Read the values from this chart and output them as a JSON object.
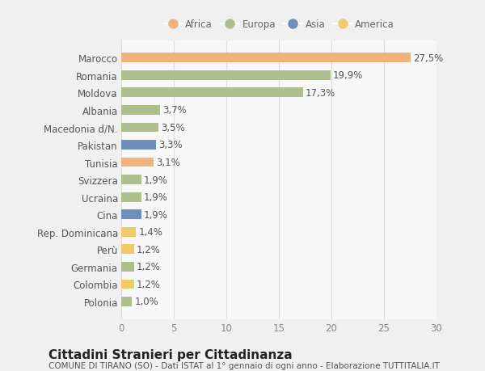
{
  "countries": [
    "Marocco",
    "Romania",
    "Moldova",
    "Albania",
    "Macedonia d/N.",
    "Pakistan",
    "Tunisia",
    "Svizzera",
    "Ucraina",
    "Cina",
    "Rep. Dominicana",
    "Perù",
    "Germania",
    "Colombia",
    "Polonia"
  ],
  "values": [
    27.5,
    19.9,
    17.3,
    3.7,
    3.5,
    3.3,
    3.1,
    1.9,
    1.9,
    1.9,
    1.4,
    1.2,
    1.2,
    1.2,
    1.0
  ],
  "labels": [
    "27,5%",
    "19,9%",
    "17,3%",
    "3,7%",
    "3,5%",
    "3,3%",
    "3,1%",
    "1,9%",
    "1,9%",
    "1,9%",
    "1,4%",
    "1,2%",
    "1,2%",
    "1,2%",
    "1,0%"
  ],
  "continents": [
    "Africa",
    "Europa",
    "Europa",
    "Europa",
    "Europa",
    "Asia",
    "Africa",
    "Europa",
    "Europa",
    "Asia",
    "America",
    "America",
    "Europa",
    "America",
    "Europa"
  ],
  "continent_colors": {
    "Africa": "#F2B27E",
    "Europa": "#AEBE8C",
    "Asia": "#6E8FBA",
    "America": "#F0C96A"
  },
  "legend_order": [
    "Africa",
    "Europa",
    "Asia",
    "America"
  ],
  "xlim": [
    0,
    30
  ],
  "xticks": [
    0,
    5,
    10,
    15,
    20,
    25,
    30
  ],
  "title": "Cittadini Stranieri per Cittadinanza",
  "subtitle": "COMUNE DI TIRANO (SO) - Dati ISTAT al 1° gennaio di ogni anno - Elaborazione TUTTITALIA.IT",
  "background_color": "#f0f0f0",
  "plot_bg_color": "#f8f8f8",
  "grid_color": "#dddddd",
  "label_fontsize": 8.5,
  "tick_fontsize": 8.5,
  "title_fontsize": 11,
  "subtitle_fontsize": 7.5,
  "bar_height": 0.55
}
